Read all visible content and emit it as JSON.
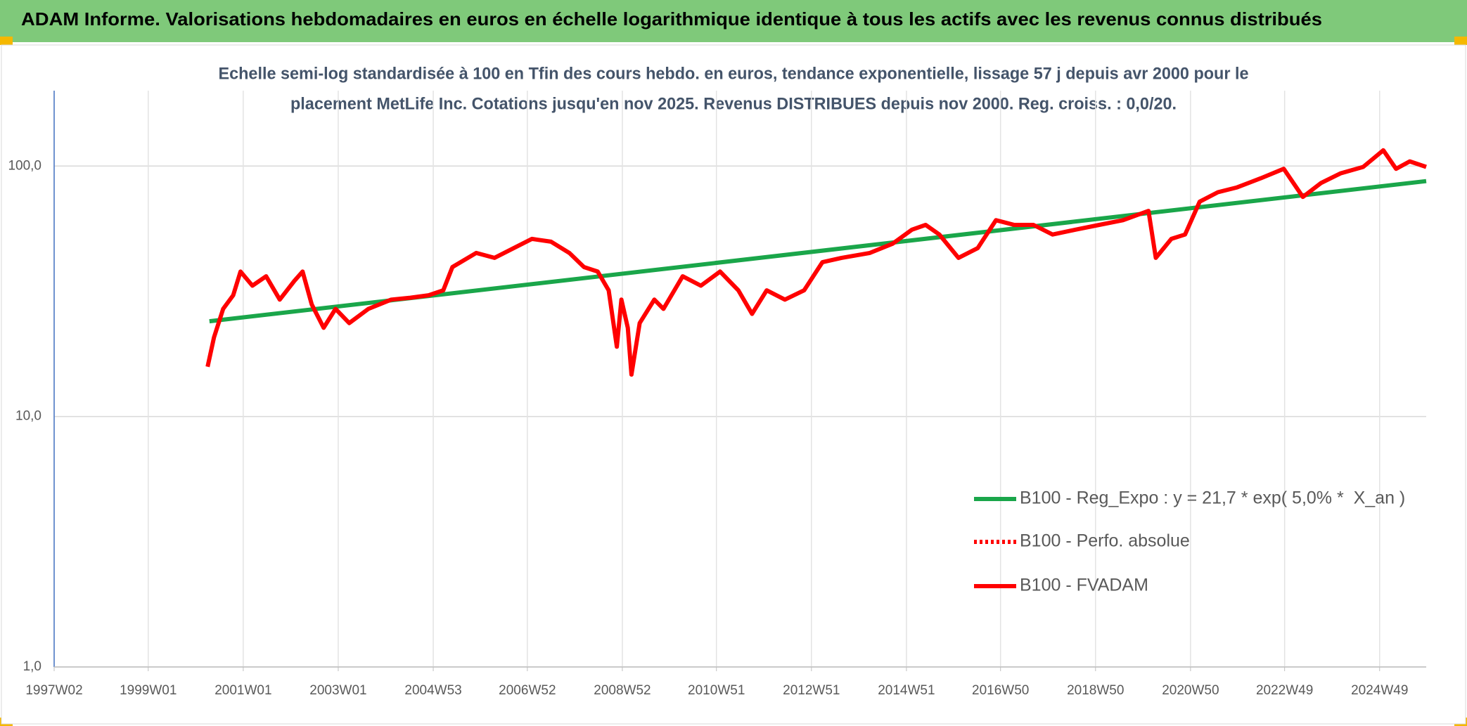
{
  "header": {
    "title": "ADAM Informe. Valorisations hebdomadaires en euros en échelle logarithmique identique à tous les actifs avec les revenus connus distribués"
  },
  "chart_data": {
    "type": "line",
    "subtitle": [
      "Echelle semi-log standardisée à 100 en Tfin des cours hebdo. en euros, tendance exponentielle, lissage 57 j depuis avr 2000 pour le",
      "placement MetLife Inc. Cotations jusqu'en nov 2025. Revenus DISTRIBUES depuis nov 2000. Reg. croiss. : 0,0/20."
    ],
    "log_scale": true,
    "grid": true,
    "legend": "right",
    "xlim": [
      "1997W02",
      "2025W48"
    ],
    "xticks": [
      "1997W02",
      "1999W01",
      "2001W01",
      "2003W01",
      "2004W53",
      "2006W52",
      "2008W52",
      "2010W51",
      "2012W51",
      "2014W51",
      "2016W50",
      "2018W50",
      "2020W50",
      "2022W49",
      "2024W49"
    ],
    "ylim": [
      1,
      200
    ],
    "yticks": [
      {
        "value": 1,
        "label": "1,0"
      },
      {
        "value": 10,
        "label": "10,0"
      },
      {
        "value": 100,
        "label": "100,0"
      }
    ],
    "series": [
      {
        "name": "B100 - Reg_Expo : y = 21,7 * exp( 5,0% *  X_an )",
        "color": "#1aa64a",
        "style": "solid",
        "x": [
          "2000W16",
          "2025W48"
        ],
        "values": [
          24.0,
          87.1
        ]
      },
      {
        "name": "B100 - Perfo. absolue",
        "color": "#ff0000",
        "style": "dotted",
        "x": [],
        "values": []
      },
      {
        "name": "B100 - FVADAM",
        "color": "#ff0000",
        "style": "solid",
        "x": [
          "2000W14",
          "2000W21",
          "2000W31",
          "2000W42",
          "2000W50",
          "2001W11",
          "2001W26",
          "2001W41",
          "2002W05",
          "2002W14",
          "2002W24",
          "2002W37",
          "2002W50",
          "2003W13",
          "2003W34",
          "2004W07",
          "2004W28",
          "2004W48",
          "2005W12",
          "2005W22",
          "2005W48",
          "2006W16",
          "2006W37",
          "2007W05",
          "2007W26",
          "2007W46",
          "2008W10",
          "2008W25",
          "2008W37",
          "2008W46",
          "2008W51",
          "2009W06",
          "2009W10",
          "2009W19",
          "2009W35",
          "2009W45",
          "2010W14",
          "2010W34",
          "2011W03",
          "2011W23",
          "2011W38",
          "2012W02",
          "2012W22",
          "2012W43",
          "2013W11",
          "2013W32",
          "2014W11",
          "2014W36",
          "2015W05",
          "2015W20",
          "2015W35",
          "2016W04",
          "2016W25",
          "2016W45",
          "2017W13",
          "2017W34",
          "2018W03",
          "2018W28",
          "2019W02",
          "2019W28",
          "2020W04",
          "2020W12",
          "2020W29",
          "2020W44",
          "2021W08",
          "2021W28",
          "2021W49",
          "2022W23",
          "2022W48",
          "2023W17",
          "2023W37",
          "2024W06",
          "2024W31",
          "2025W01",
          "2025W15",
          "2025W30",
          "2025W48"
        ],
        "values": [
          15.8,
          20.7,
          26.9,
          30.5,
          37.9,
          33.3,
          36.3,
          29.3,
          34.8,
          37.9,
          28,
          22.6,
          26.9,
          23.6,
          26.9,
          29.3,
          29.8,
          30.5,
          31.9,
          39.5,
          45,
          43,
          47,
          51.2,
          49.9,
          45,
          39.5,
          37.9,
          31.9,
          19,
          29.3,
          22.6,
          14.7,
          23.6,
          29.3,
          26.9,
          36.3,
          33.3,
          37.9,
          31.9,
          25.7,
          31.9,
          29.3,
          31.9,
          41.3,
          43,
          45,
          49,
          55.7,
          58.2,
          53.3,
          43,
          47,
          60.8,
          58.2,
          58.2,
          53.3,
          55.7,
          58.2,
          60.8,
          66.2,
          43,
          51.2,
          53.3,
          72.1,
          78.6,
          82.2,
          89.4,
          97.5,
          75.3,
          85.6,
          93.4,
          99.2,
          115.6,
          97.5,
          104.4,
          99.2
        ]
      }
    ]
  }
}
